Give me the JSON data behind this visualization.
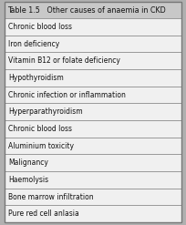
{
  "title": "Table 1.5   Other causes of anaemia in CKD",
  "rows": [
    "Chronic blood loss",
    "Iron deficiency",
    "Vitamin B12 or folate deficiency",
    "Hypothyroidism",
    "Chronic infection or inflammation",
    "Hyperparathyroidism",
    "Chronic blood loss",
    "Aluminium toxicity",
    "Malignancy",
    "Haemolysis",
    "Bone marrow infiltration",
    "Pure red cell anlasia"
  ],
  "header_bg": "#c8c8c8",
  "row_bg": "#f0f0f0",
  "outer_bg": "#b0b0b0",
  "border_color": "#777777",
  "text_color": "#111111",
  "header_fontsize": 5.8,
  "row_fontsize": 5.5,
  "fig_width": 2.04,
  "fig_height": 2.47,
  "dpi": 100
}
